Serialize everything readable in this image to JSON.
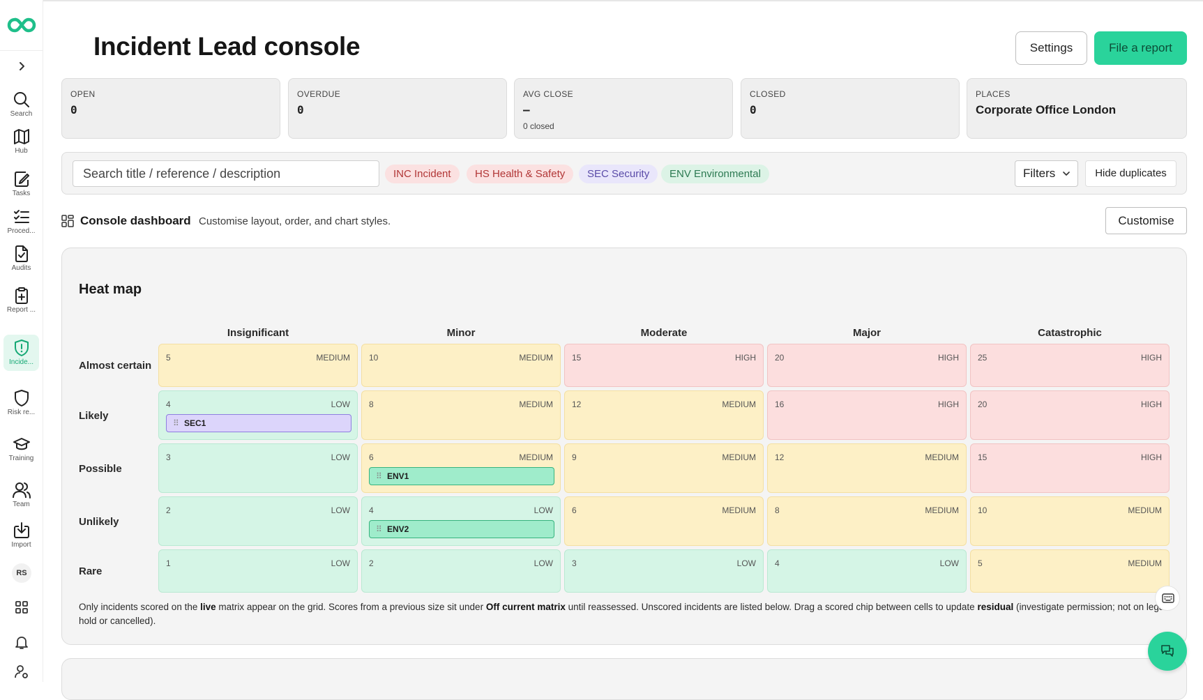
{
  "header": {
    "title": "Incident Lead console",
    "settings_label": "Settings",
    "file_report_label": "File a report"
  },
  "sidebar": {
    "items": [
      {
        "label": "Search",
        "icon": "search-icon"
      },
      {
        "label": "Hub",
        "icon": "map-icon"
      },
      {
        "label": "Tasks",
        "icon": "tasks-icon"
      },
      {
        "label": "Proced...",
        "icon": "procedures-icon"
      },
      {
        "label": "Audits",
        "icon": "audit-icon"
      },
      {
        "label": "Report ...",
        "icon": "report-icon"
      },
      {
        "label": "Incide...",
        "icon": "incident-shield-icon",
        "active": true
      },
      {
        "label": "Risk re...",
        "icon": "shield-icon"
      },
      {
        "label": "Training",
        "icon": "graduation-cap-icon"
      },
      {
        "label": "Team",
        "icon": "team-icon"
      },
      {
        "label": "Import",
        "icon": "import-icon"
      }
    ],
    "avatar_initials": "RS"
  },
  "kpis": [
    {
      "label": "OPEN",
      "value": "0"
    },
    {
      "label": "OVERDUE",
      "value": "0"
    },
    {
      "label": "AVG CLOSE",
      "value": "–",
      "sub": "0 closed"
    },
    {
      "label": "CLOSED",
      "value": "0"
    },
    {
      "label": "PLACES",
      "value": "Corporate Office London"
    }
  ],
  "filters": {
    "search_placeholder": "Search title / reference / description",
    "chips": [
      {
        "code": "INC",
        "label": "Incident"
      },
      {
        "code": "HS",
        "label": "Health & Safety"
      },
      {
        "code": "SEC",
        "label": "Security"
      },
      {
        "code": "ENV",
        "label": "Environmental"
      }
    ],
    "filters_label": "Filters",
    "hide_duplicates_label": "Hide duplicates"
  },
  "dashboard": {
    "title": "Console dashboard",
    "subtitle": "Customise layout, order, and chart styles.",
    "customise_label": "Customise"
  },
  "heatmap": {
    "title": "Heat map",
    "columns": [
      "Insignificant",
      "Minor",
      "Moderate",
      "Major",
      "Catastrophic"
    ],
    "rows": [
      {
        "label": "Almost certain",
        "cells": [
          {
            "score": "5",
            "level": "MEDIUM"
          },
          {
            "score": "10",
            "level": "MEDIUM"
          },
          {
            "score": "15",
            "level": "HIGH"
          },
          {
            "score": "20",
            "level": "HIGH"
          },
          {
            "score": "25",
            "level": "HIGH"
          }
        ]
      },
      {
        "label": "Likely",
        "cells": [
          {
            "score": "4",
            "level": "LOW",
            "chip": "SEC1"
          },
          {
            "score": "8",
            "level": "MEDIUM"
          },
          {
            "score": "12",
            "level": "MEDIUM"
          },
          {
            "score": "16",
            "level": "HIGH"
          },
          {
            "score": "20",
            "level": "HIGH"
          }
        ]
      },
      {
        "label": "Possible",
        "cells": [
          {
            "score": "3",
            "level": "LOW"
          },
          {
            "score": "6",
            "level": "MEDIUM",
            "chip": "ENV1"
          },
          {
            "score": "9",
            "level": "MEDIUM"
          },
          {
            "score": "12",
            "level": "MEDIUM"
          },
          {
            "score": "15",
            "level": "HIGH"
          }
        ]
      },
      {
        "label": "Unlikely",
        "cells": [
          {
            "score": "2",
            "level": "LOW"
          },
          {
            "score": "4",
            "level": "LOW",
            "chip": "ENV2"
          },
          {
            "score": "6",
            "level": "MEDIUM"
          },
          {
            "score": "8",
            "level": "MEDIUM"
          },
          {
            "score": "10",
            "level": "MEDIUM"
          }
        ]
      },
      {
        "label": "Rare",
        "cells": [
          {
            "score": "1",
            "level": "LOW"
          },
          {
            "score": "2",
            "level": "LOW"
          },
          {
            "score": "3",
            "level": "LOW"
          },
          {
            "score": "4",
            "level": "LOW"
          },
          {
            "score": "5",
            "level": "MEDIUM"
          }
        ]
      }
    ],
    "note": {
      "t1": "Only incidents scored on the ",
      "b1": "live",
      "t2": " matrix appear on the grid. Scores from a previous size sit under ",
      "b2": "Off current matrix",
      "t3": " until reassessed. Unscored incidents are listed below. Drag a scored chip between cells to update ",
      "b3": "residual",
      "t4": " (investigate permission; not on legal hold or cancelled)."
    }
  },
  "colors": {
    "accent": "#2ad39b",
    "low": "#d5f5e6",
    "medium": "#fdf0c6",
    "high": "#fcdede"
  }
}
